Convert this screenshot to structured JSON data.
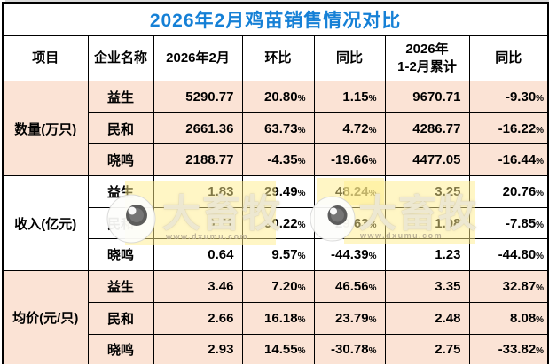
{
  "title": "2026年2月鸡苗销售情况对比",
  "headers": [
    "项目",
    "企业名称",
    "2026年2月",
    "环比",
    "同比",
    "2026年\n1-2月累计",
    "同比"
  ],
  "sections": [
    {
      "label": "数量(万只)",
      "rows": [
        {
          "company": "益生",
          "feb": "5290.77",
          "mom": "20.80%",
          "yoy": "1.15%",
          "cum": "9670.71",
          "cum_yoy": "-9.30%"
        },
        {
          "company": "民和",
          "feb": "2661.36",
          "mom": "63.73%",
          "yoy": "4.72%",
          "cum": "4286.77",
          "cum_yoy": "-16.22%"
        },
        {
          "company": "晓鸣",
          "feb": "2188.77",
          "mom": "-4.35%",
          "yoy": "-19.66%",
          "cum": "4477.05",
          "cum_yoy": "-16.44%"
        }
      ]
    },
    {
      "label": "收入(亿元)",
      "rows": [
        {
          "company": "益生",
          "feb": "1.83",
          "mom": "29.49%",
          "yoy": "48.24%",
          "cum": "3.25",
          "cum_yoy": "20.76%"
        },
        {
          "company": "民和",
          "feb": "0.71",
          "mom": "90.22%",
          "yoy": "29.63%",
          "cum": "1.08",
          "cum_yoy": "-7.85%"
        },
        {
          "company": "晓鸣",
          "feb": "0.64",
          "mom": "9.57%",
          "yoy": "-44.39%",
          "cum": "1.23",
          "cum_yoy": "-44.80%"
        }
      ]
    },
    {
      "label": "均价(元/只)",
      "rows": [
        {
          "company": "益生",
          "feb": "3.46",
          "mom": "7.20%",
          "yoy": "46.56%",
          "cum": "3.35",
          "cum_yoy": "32.87%"
        },
        {
          "company": "民和",
          "feb": "2.66",
          "mom": "16.18%",
          "yoy": "23.79%",
          "cum": "2.48",
          "cum_yoy": "8.08%"
        },
        {
          "company": "晓鸣",
          "feb": "2.93",
          "mom": "14.55%",
          "yoy": "-30.78%",
          "cum": "2.75",
          "cum_yoy": "-33.82%"
        }
      ]
    }
  ],
  "watermark": {
    "brand": "大畜牧",
    "url": "www.dxumu.com"
  },
  "colors": {
    "title_blue": "#1580d6",
    "positive_red": "#fe0000",
    "negative_green": "#00a651",
    "section_fill_pink": "#fbe3d5",
    "border_black": "#000000",
    "watermark_yellow": "#ffee8c"
  },
  "chart_data": {
    "type": "table",
    "title": "2026年2月鸡苗销售情况对比",
    "columns": [
      "项目",
      "企业名称",
      "2026年2月",
      "环比",
      "同比",
      "2026年1-2月累计",
      "同比"
    ],
    "rows": [
      [
        "数量(万只)",
        "益生",
        "5290.77",
        "20.80%",
        "1.15%",
        "9670.71",
        "-9.30%"
      ],
      [
        "数量(万只)",
        "民和",
        "2661.36",
        "63.73%",
        "4.72%",
        "4286.77",
        "-16.22%"
      ],
      [
        "数量(万只)",
        "晓鸣",
        "2188.77",
        "-4.35%",
        "-19.66%",
        "4477.05",
        "-16.44%"
      ],
      [
        "收入(亿元)",
        "益生",
        "1.83",
        "29.49%",
        "48.24%",
        "3.25",
        "20.76%"
      ],
      [
        "收入(亿元)",
        "民和",
        "0.71",
        "90.22%",
        "29.63%",
        "1.08",
        "-7.85%"
      ],
      [
        "收入(亿元)",
        "晓鸣",
        "0.64",
        "9.57%",
        "-44.39%",
        "1.23",
        "-44.80%"
      ],
      [
        "均价(元/只)",
        "益生",
        "3.46",
        "7.20%",
        "46.56%",
        "3.35",
        "32.87%"
      ],
      [
        "均价(元/只)",
        "民和",
        "2.66",
        "16.18%",
        "23.79%",
        "2.48",
        "8.08%"
      ],
      [
        "均价(元/只)",
        "晓鸣",
        "2.93",
        "14.55%",
        "-30.78%",
        "2.75",
        "-33.82%"
      ]
    ]
  }
}
